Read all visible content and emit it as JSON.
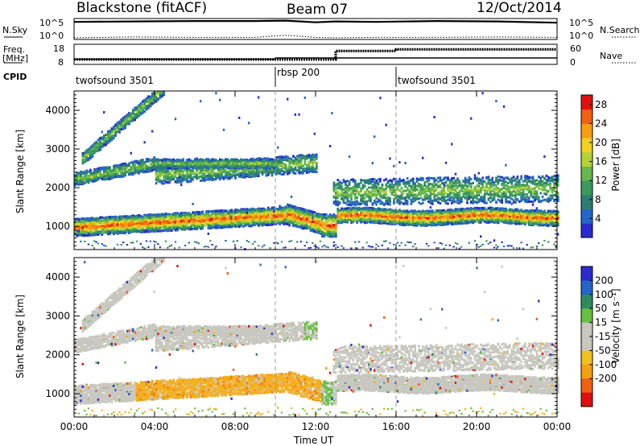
{
  "header": {
    "station": "Blackstone (fitACF)",
    "beam": "Beam 07",
    "date": "12/Oct/2014"
  },
  "side_labels": {
    "nsky": "N.Sky",
    "freq_top": "Freq.",
    "freq_unit": "[MHz]",
    "cpid": "CPID",
    "nsearch": "N.Search",
    "nave": "Nave",
    "nsky_top": "10^5",
    "nsky_bottom": "10^0",
    "nsearch_top": "10^5",
    "nsearch_bottom": "10^0",
    "freq_max": "18",
    "freq_min": "8",
    "nave_max": "60",
    "nave_min": "0"
  },
  "cpid_segments": [
    {
      "label": "twofsound 3501",
      "start_hour": 0,
      "end_hour": 10
    },
    {
      "label": "rbsp 200",
      "start_hour": 10,
      "end_hour": 16
    },
    {
      "label": "twofsound 3501",
      "start_hour": 16,
      "end_hour": 24
    }
  ],
  "colors": {
    "power_scale": [
      "#2b2bd0",
      "#2266cc",
      "#2e7d73",
      "#3a9a5a",
      "#66b84a",
      "#b6d232",
      "#f0d020",
      "#f5a010",
      "#f06010",
      "#e01010"
    ],
    "velocity_scale": [
      "#e01010",
      "#f06010",
      "#f5a010",
      "#f0c020",
      "#c8c8c0",
      "#c8c8c0",
      "#66c040",
      "#2e8a60",
      "#2266cc",
      "#2b2bd0"
    ]
  },
  "chart_data": [
    {
      "type": "line",
      "name": "top-parameter-panel",
      "x_unit": "hour UT",
      "series": [
        {
          "name": "N.Sky",
          "x": [
            0,
            3,
            6,
            9,
            10.5,
            12,
            13,
            15,
            18,
            21,
            24
          ],
          "y": [
            4.2,
            4.3,
            4.4,
            4.4,
            4.5,
            4.1,
            4.3,
            4.2,
            4.4,
            4.3,
            4.0
          ]
        },
        {
          "name": "N.Search",
          "x": [
            0,
            3,
            6,
            9,
            10.5,
            12,
            13,
            15,
            18,
            21,
            24
          ],
          "y": [
            0.4,
            0.6,
            0.5,
            0.5,
            1.0,
            0.5,
            0.4,
            0.5,
            0.5,
            0.6,
            0.5
          ]
        }
      ]
    },
    {
      "type": "line",
      "name": "freq-nave-panel",
      "x_unit": "hour UT",
      "series": [
        {
          "name": "Freq.",
          "x": [
            0,
            10,
            10,
            24
          ],
          "y": [
            10.6,
            10.6,
            11.2,
            11.2
          ]
        },
        {
          "name": "Nave",
          "x": [
            0,
            13,
            13,
            16,
            16,
            24
          ],
          "y": [
            15,
            15,
            40,
            40,
            45,
            45
          ]
        }
      ]
    },
    {
      "type": "heatmap",
      "name": "power-panel",
      "xlim": [
        0,
        24
      ],
      "ylim": [
        400,
        4500
      ],
      "xticks": [
        "00:00",
        "04:00",
        "08:00",
        "12:00",
        "16:00",
        "20:00",
        "00:00"
      ],
      "yticks": [
        1000,
        2000,
        3000,
        4000
      ],
      "ylabel": "Slant Range [km]",
      "colorbar_label": "Power [dB]",
      "colorbar_ticks": [
        4,
        8,
        12,
        16,
        20,
        24,
        28
      ],
      "colorbar_range": [
        0,
        30
      ]
    },
    {
      "type": "heatmap",
      "name": "velocity-panel",
      "xlim": [
        0,
        24
      ],
      "ylim": [
        400,
        4500
      ],
      "xticks": [
        "00:00",
        "04:00",
        "08:00",
        "12:00",
        "16:00",
        "20:00",
        "00:00"
      ],
      "yticks": [
        1000,
        2000,
        3000,
        4000
      ],
      "xlabel": "Time UT",
      "ylabel": "Slant Range [km]",
      "colorbar_label": "Velocity [m s⁻¹]",
      "colorbar_ticks": [
        "200",
        "100",
        "50",
        "15",
        "-15",
        "-50",
        "-100",
        "-200"
      ]
    }
  ]
}
